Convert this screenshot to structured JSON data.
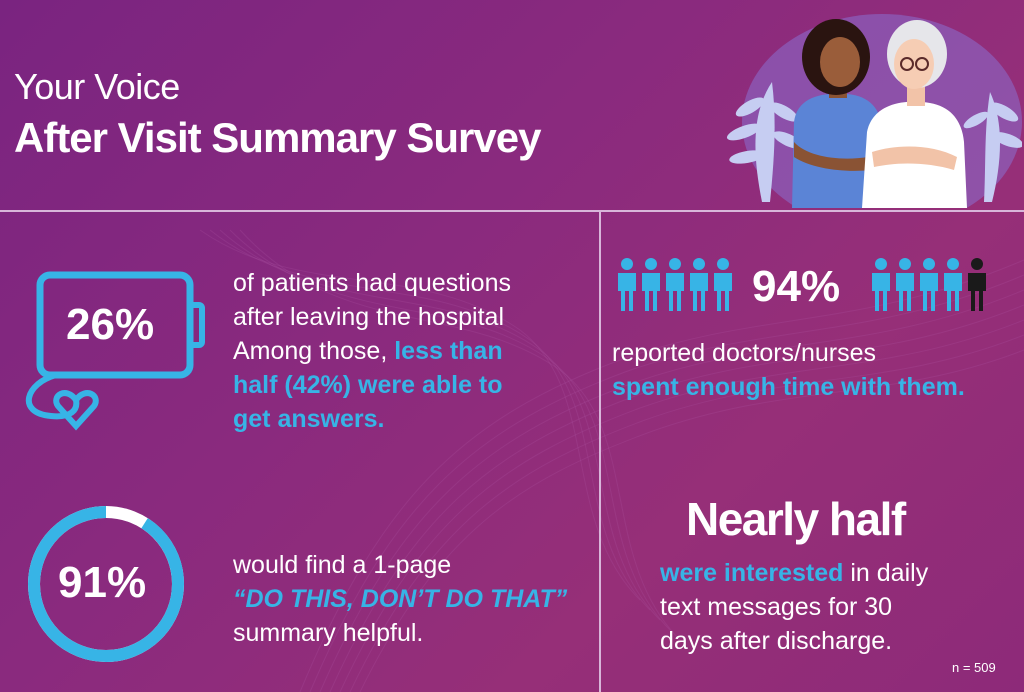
{
  "header": {
    "title_small": "Your Voice",
    "title_large": "After Visit Summary Survey"
  },
  "stat1": {
    "value": "26%",
    "line1": "of patients had questions",
    "line2": "after leaving the hospital",
    "line3_plain": "Among those, ",
    "line3_hl": "less than",
    "line4_hl": "half (42%) were able to",
    "line5_hl": "get answers."
  },
  "stat2": {
    "value": "94%",
    "line1": "reported doctors/nurses",
    "line2_hl": "spent enough time with them."
  },
  "stat3": {
    "value": "91%",
    "progress_fraction": 0.91,
    "line1": "would find a 1-page",
    "line2_hl": "“DO THIS, DON’T DO THAT”",
    "line3": "summary helpful."
  },
  "stat4": {
    "headline": "Nearly half",
    "line1_hl": "were interested",
    "line1_plain": " in daily",
    "line2": "text messages for 30",
    "line3": "days after discharge."
  },
  "footnote": "n = 509",
  "colors": {
    "accent": "#37b4e6",
    "background": "#8a2a7e",
    "divider": "#d8b6da",
    "icon_highlight": "#1a1a1a"
  },
  "icons": {
    "people_total": 10,
    "people_highlighted": 1
  }
}
